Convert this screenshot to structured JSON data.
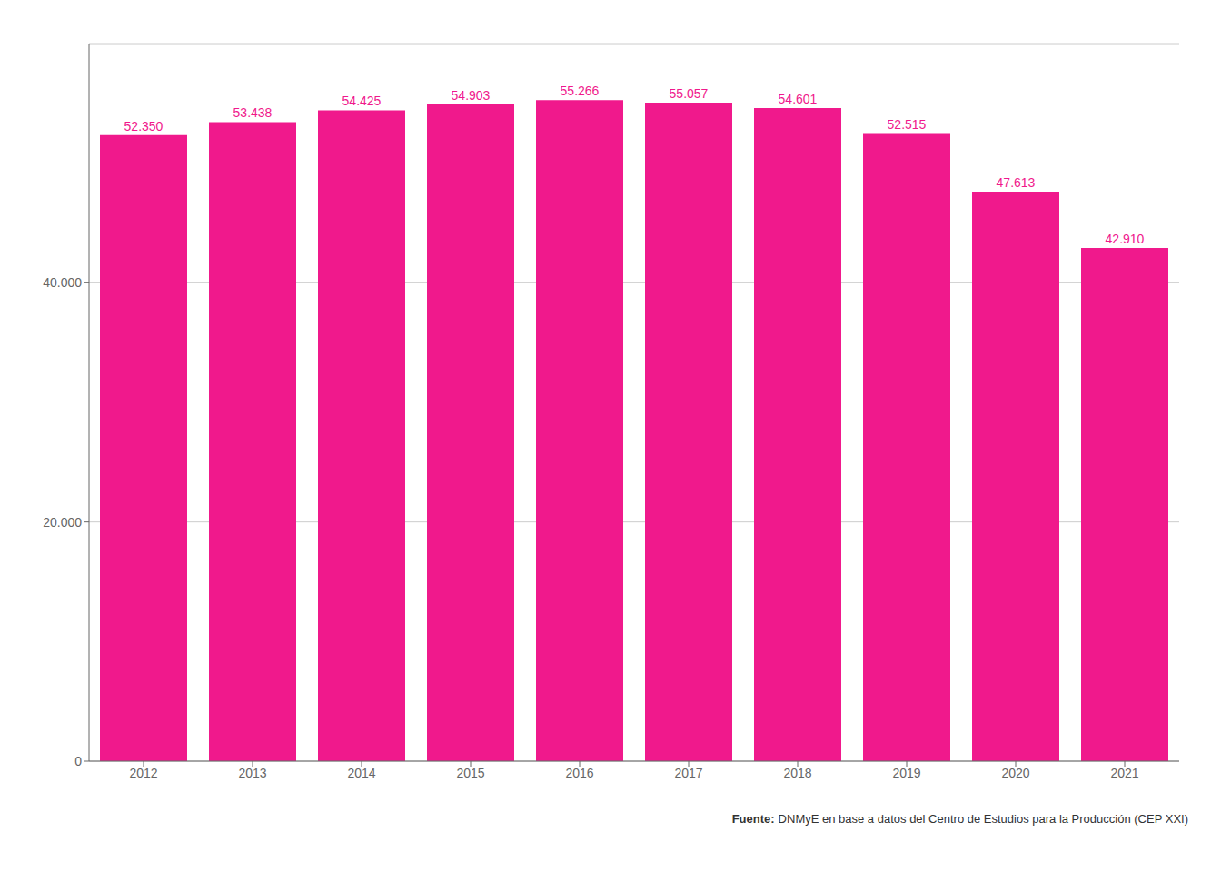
{
  "chart_data": {
    "type": "bar",
    "categories": [
      "2012",
      "2013",
      "2014",
      "2015",
      "2016",
      "2017",
      "2018",
      "2019",
      "2020",
      "2021"
    ],
    "values": [
      52350,
      53438,
      54425,
      54903,
      55266,
      55057,
      54601,
      52515,
      47613,
      42910
    ],
    "value_labels": [
      "52.350",
      "53.438",
      "54.425",
      "54.903",
      "55.266",
      "55.057",
      "54.601",
      "52.515",
      "47.613",
      "42.910"
    ],
    "data_labels": true,
    "color": "#F0198C",
    "ylim": [
      0,
      60000
    ],
    "yticks": [
      0,
      {
        "value": 20000,
        "label": "20.000"
      },
      {
        "value": 40000,
        "label": "40.000"
      }
    ],
    "grid": true,
    "annotations": [
      "Fuente:",
      "DNMyE en base a datos del Centro de Estudios para la Producción (CEP XXI)"
    ]
  }
}
